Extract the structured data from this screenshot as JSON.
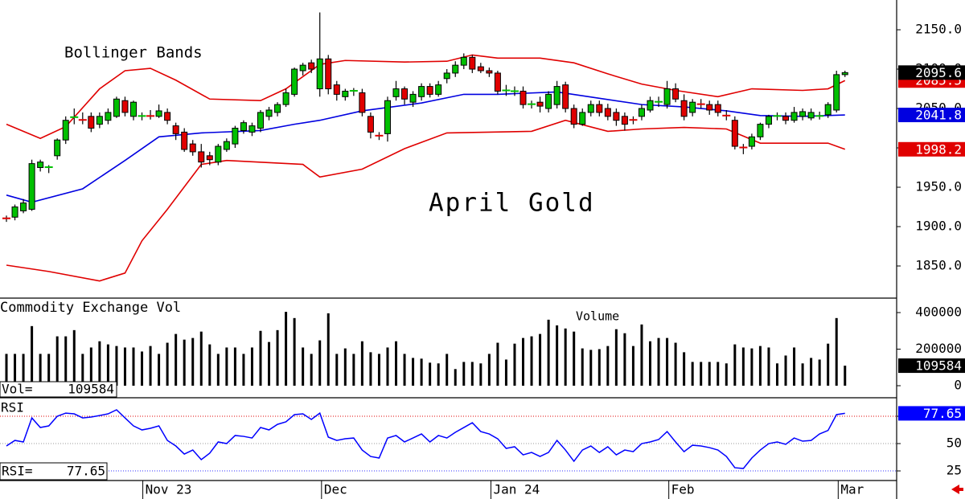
{
  "chart_data": [
    {
      "type": "candlestick",
      "title": "April Gold",
      "annotation": "Bollinger Bands",
      "xlim": [
        -0.76,
        105.1
      ],
      "xticks": [
        {
          "value": 16.1,
          "label": "Nov 23"
        },
        {
          "value": 37.2,
          "label": "Dec"
        },
        {
          "value": 57.2,
          "label": "Jan 24"
        },
        {
          "value": 78.2,
          "label": "Feb"
        },
        {
          "value": 98.2,
          "label": "Mar"
        }
      ],
      "ylim": [
        1810.2,
        2187.8
      ],
      "yticks": [
        {
          "value": 1850,
          "label": "1850.0"
        },
        {
          "value": 1900,
          "label": "1900.0"
        },
        {
          "value": 1950,
          "label": "1950.0"
        },
        {
          "value": 2000,
          "label": "2000.0"
        },
        {
          "value": 2050,
          "label": "2050.0"
        },
        {
          "value": 2100,
          "label": "2100.0"
        },
        {
          "value": 2150,
          "label": "2150.0"
        }
      ],
      "up_color": "#00c000",
      "down_color": "#e00000",
      "tag_color": "#000000",
      "open": [
        1911,
        1912,
        1920,
        1922,
        1975,
        1975,
        1990,
        2010,
        2038,
        2036,
        2040,
        2030,
        2035,
        2040,
        2060,
        2040,
        2040,
        2041,
        2040,
        2045,
        2028,
        2020,
        2005,
        1995,
        1990,
        1982,
        1998,
        2005,
        2022,
        2020,
        2025,
        2040,
        2045,
        2055,
        2068,
        2098,
        2108,
        2075,
        2113,
        2080,
        2065,
        2072,
        2070,
        2040,
        2016,
        2018,
        2065,
        2075,
        2058,
        2065,
        2078,
        2068,
        2088,
        2095,
        2105,
        2115,
        2103,
        2098,
        2095,
        2073,
        2072,
        2072,
        2055,
        2058,
        2050,
        2055,
        2080,
        2050,
        2030,
        2045,
        2055,
        2050,
        2045,
        2040,
        2036,
        2040,
        2048,
        2058,
        2055,
        2075,
        2060,
        2045,
        2056,
        2055,
        2055,
        2042,
        2035,
        2001,
        2002,
        2014,
        2030,
        2040,
        2040,
        2035,
        2040,
        2038,
        2040,
        2042,
        2048,
        2093
      ],
      "high": [
        1914,
        1928,
        1935,
        1985,
        1985,
        1978,
        2012,
        2040,
        2050,
        2045,
        2045,
        2045,
        2050,
        2065,
        2065,
        2060,
        2045,
        2048,
        2055,
        2050,
        2032,
        2025,
        2010,
        2005,
        1995,
        2005,
        2012,
        2028,
        2035,
        2032,
        2048,
        2052,
        2058,
        2075,
        2102,
        2108,
        2112,
        2172,
        2118,
        2085,
        2075,
        2076,
        2075,
        2045,
        2020,
        2065,
        2085,
        2078,
        2072,
        2082,
        2082,
        2085,
        2100,
        2110,
        2120,
        2118,
        2108,
        2102,
        2098,
        2080,
        2078,
        2078,
        2060,
        2065,
        2072,
        2085,
        2084,
        2055,
        2050,
        2060,
        2060,
        2056,
        2050,
        2045,
        2040,
        2055,
        2065,
        2065,
        2085,
        2082,
        2068,
        2062,
        2062,
        2060,
        2060,
        2048,
        2040,
        2005,
        2018,
        2032,
        2042,
        2045,
        2045,
        2052,
        2050,
        2050,
        2046,
        2058,
        2098,
        2098
      ],
      "low": [
        1906,
        1908,
        1917,
        1920,
        1970,
        1968,
        1985,
        2005,
        2030,
        2030,
        2020,
        2025,
        2030,
        2038,
        2040,
        2035,
        2035,
        2036,
        2038,
        2030,
        2010,
        1995,
        1990,
        1975,
        1978,
        1978,
        1995,
        2000,
        2018,
        2015,
        2020,
        2035,
        2040,
        2052,
        2065,
        2092,
        2095,
        2065,
        2068,
        2060,
        2060,
        2066,
        2040,
        2012,
        2010,
        2008,
        2060,
        2055,
        2052,
        2060,
        2064,
        2065,
        2082,
        2090,
        2100,
        2095,
        2095,
        2090,
        2068,
        2066,
        2066,
        2050,
        2050,
        2045,
        2045,
        2050,
        2045,
        2025,
        2028,
        2040,
        2040,
        2035,
        2028,
        2022,
        2030,
        2035,
        2045,
        2052,
        2050,
        2058,
        2035,
        2040,
        2050,
        2042,
        2040,
        2035,
        1998,
        1992,
        1998,
        2010,
        2025,
        2035,
        2030,
        2032,
        2035,
        2035,
        2036,
        2038,
        2045,
        2090
      ],
      "close": [
        1910,
        1925,
        1930,
        1980,
        1982,
        1976,
        2010,
        2035,
        2040,
        2035,
        2025,
        2040,
        2045,
        2062,
        2045,
        2058,
        2041,
        2040,
        2047,
        2035,
        2018,
        1998,
        1995,
        1982,
        1985,
        2002,
        2008,
        2025,
        2032,
        2028,
        2045,
        2048,
        2055,
        2070,
        2100,
        2105,
        2100,
        2113,
        2075,
        2068,
        2072,
        2073,
        2045,
        2020,
        2015,
        2060,
        2075,
        2062,
        2068,
        2078,
        2068,
        2080,
        2095,
        2105,
        2115,
        2100,
        2098,
        2095,
        2072,
        2073,
        2072,
        2055,
        2056,
        2053,
        2068,
        2078,
        2050,
        2030,
        2045,
        2055,
        2045,
        2040,
        2035,
        2030,
        2035,
        2050,
        2060,
        2059,
        2075,
        2062,
        2040,
        2058,
        2055,
        2048,
        2045,
        2040,
        2002,
        2000,
        2014,
        2030,
        2040,
        2041,
        2035,
        2045,
        2046,
        2045,
        2041,
        2055,
        2093,
        2095.6
      ],
      "bands": [
        {
          "color": "#e00000",
          "x": [
            0,
            4,
            7,
            11,
            14,
            17,
            20,
            24,
            30,
            33,
            37,
            40,
            47,
            52,
            55,
            58,
            63,
            67,
            71,
            75,
            79,
            84,
            88,
            94,
            97,
            99
          ],
          "values": [
            2030,
            2012,
            2027,
            2075,
            2098,
            2101,
            2086,
            2062,
            2060,
            2075,
            2106,
            2111,
            2109,
            2110,
            2118,
            2114,
            2114,
            2108,
            2094,
            2081,
            2073,
            2065,
            2075,
            2073,
            2075,
            2085.5
          ]
        },
        {
          "color": "#0000e0",
          "x": [
            0,
            3,
            9,
            14,
            18,
            23,
            30,
            34,
            37,
            42,
            49,
            54,
            58,
            65,
            70,
            75,
            80,
            85,
            89,
            94,
            99
          ],
          "values": [
            1940,
            1931,
            1948,
            1984,
            2014,
            2019,
            2022,
            2030,
            2035,
            2047,
            2057,
            2068,
            2068,
            2071,
            2063,
            2055,
            2052,
            2047,
            2041,
            2040,
            2041.8
          ]
        },
        {
          "color": "#e00000",
          "x": [
            0,
            5,
            11,
            14,
            16,
            19,
            23,
            26,
            35,
            37,
            42,
            47,
            52,
            62,
            66,
            71,
            75,
            80,
            85,
            89,
            97,
            99
          ],
          "values": [
            1851,
            1843,
            1831,
            1841,
            1882,
            1922,
            1979,
            1984,
            1979,
            1963,
            1973,
            1999,
            2019,
            2021,
            2035,
            2021,
            2024,
            2026,
            2024,
            2006,
            2006,
            1998.2
          ]
        }
      ]
    },
    {
      "type": "bar",
      "title": "Commodity Exchange Vol",
      "annotation": "Volume",
      "readout": "Vol=",
      "color": "#000000",
      "tag_color": "#000000",
      "ylim": [
        -61500,
        474700
      ],
      "yticks": [
        0,
        200000,
        400000
      ],
      "values": [
        174000,
        174000,
        174000,
        326000,
        174000,
        174000,
        270000,
        270000,
        304000,
        174000,
        209000,
        243000,
        226000,
        217000,
        209000,
        209000,
        187000,
        217000,
        174000,
        235000,
        283000,
        252000,
        261000,
        296000,
        226000,
        174000,
        209000,
        209000,
        174000,
        209000,
        300000,
        239000,
        304000,
        404000,
        370000,
        209000,
        174000,
        248000,
        396000,
        174000,
        204000,
        174000,
        243000,
        183000,
        174000,
        209000,
        243000,
        174000,
        152000,
        148000,
        126000,
        122000,
        174000,
        91000,
        130000,
        130000,
        122000,
        174000,
        235000,
        143000,
        230000,
        261000,
        270000,
        283000,
        361000,
        330000,
        313000,
        296000,
        204000,
        196000,
        200000,
        217000,
        309000,
        287000,
        217000,
        335000,
        243000,
        261000,
        261000,
        235000,
        183000,
        130000,
        130000,
        130000,
        130000,
        122000,
        226000,
        209000,
        204000,
        217000,
        209000,
        122000,
        165000,
        209000,
        122000,
        152000,
        143000,
        230000,
        370000,
        109584
      ]
    },
    {
      "type": "line",
      "title": "RSI",
      "readout": "RSI=",
      "color": "#0000ff",
      "ylim": [
        16.2,
        91.2
      ],
      "yticks": [
        25,
        50,
        75
      ],
      "tick_line_colors": [
        "#3030ff",
        "#999999",
        "#e00000"
      ],
      "values": [
        47.8,
        52.9,
        51.5,
        73.5,
        64.7,
        66.2,
        75,
        77.9,
        77.2,
        73.5,
        74.3,
        75.7,
        77.2,
        80.9,
        73.5,
        66.2,
        62.5,
        64,
        66.2,
        52.9,
        47.8,
        40.4,
        44.1,
        35.3,
        41.2,
        51.5,
        50,
        57.4,
        56.6,
        55.1,
        64.7,
        62.5,
        67.6,
        69.9,
        76.5,
        77.2,
        72.1,
        77.9,
        55.9,
        52.9,
        54.4,
        55.1,
        44.1,
        38.2,
        36.8,
        55.1,
        57.4,
        51.5,
        55.1,
        58.8,
        51.5,
        57.4,
        55.1,
        60.3,
        64.7,
        69.1,
        61,
        58.8,
        54.4,
        45.6,
        47.1,
        39.7,
        41.9,
        38.2,
        41.9,
        52.9,
        44.1,
        33.8,
        44.1,
        47.8,
        41.9,
        47.1,
        39.7,
        44.1,
        42.6,
        50,
        51.5,
        53.7,
        61,
        51.5,
        42.6,
        48.5,
        47.8,
        46.3,
        44.1,
        38.2,
        27.9,
        27.2,
        36.8,
        44.1,
        50,
        51.5,
        49.3,
        55.1,
        52.2,
        52.9,
        58.8,
        62,
        76.5,
        77.65
      ]
    }
  ]
}
